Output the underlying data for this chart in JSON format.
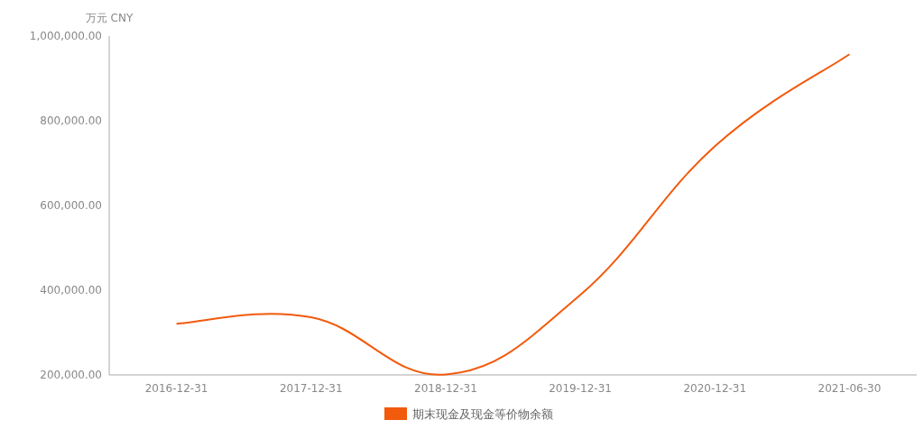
{
  "chart_data": {
    "type": "line",
    "ylabel": "万元 CNY",
    "categories": [
      "2016-12-31",
      "2017-12-31",
      "2018-12-31",
      "2019-12-31",
      "2020-12-31",
      "2021-06-30"
    ],
    "series": [
      {
        "name": "期末现金及现金等价物余额",
        "color": "#f25a0c",
        "values": [
          321000,
          336000,
          201000,
          389000,
          740000,
          957000
        ]
      }
    ],
    "ylim": [
      200000,
      1000000
    ],
    "yticks": [
      {
        "value": 200000,
        "label": "200,000.00"
      },
      {
        "value": 400000,
        "label": "400,000.00"
      },
      {
        "value": 600000,
        "label": "600,000.00"
      },
      {
        "value": 800000,
        "label": "800,000.00"
      },
      {
        "value": 1000000,
        "label": "1,000,000.00"
      }
    ],
    "grid": false,
    "legend": "bottom",
    "marker": "none",
    "line_style": "solid"
  }
}
